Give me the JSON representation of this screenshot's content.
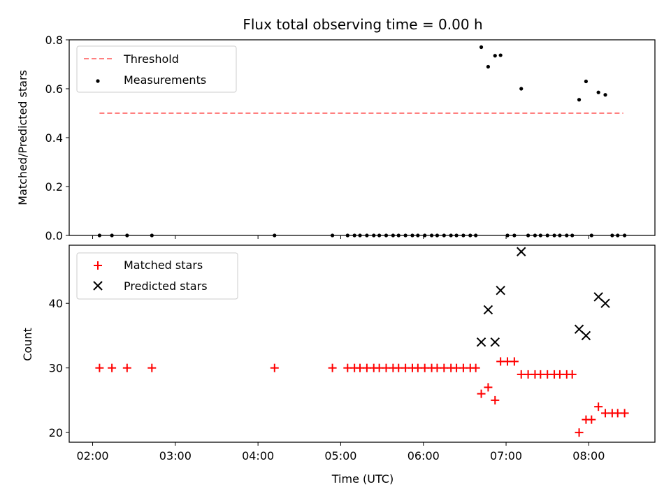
{
  "title": "Flux total observing time = 0.00 h",
  "chart_data": [
    {
      "type": "scatter",
      "ylabel": "Matched/Predicted stars",
      "ylim": [
        0,
        0.8
      ],
      "yticks": [
        "0.0",
        "0.2",
        "0.4",
        "0.6",
        "0.8"
      ],
      "threshold": {
        "name": "Threshold",
        "value": 0.5,
        "x_range": [
          "02:05",
          "08:25"
        ],
        "color": "#ff8080"
      },
      "series": [
        {
          "name": "Measurements",
          "color": "#000000",
          "marker": "dot",
          "points": [
            [
              "02:05",
              0
            ],
            [
              "02:14",
              0
            ],
            [
              "02:25",
              0
            ],
            [
              "02:43",
              0
            ],
            [
              "04:12",
              0
            ],
            [
              "04:54",
              0
            ],
            [
              "05:05",
              0
            ],
            [
              "05:10",
              0
            ],
            [
              "05:14",
              0
            ],
            [
              "05:19",
              0
            ],
            [
              "05:24",
              0
            ],
            [
              "05:28",
              0
            ],
            [
              "05:33",
              0
            ],
            [
              "05:38",
              0
            ],
            [
              "05:42",
              0
            ],
            [
              "05:47",
              0
            ],
            [
              "05:52",
              0
            ],
            [
              "05:56",
              0
            ],
            [
              "06:01",
              0
            ],
            [
              "06:06",
              0
            ],
            [
              "06:10",
              0
            ],
            [
              "06:15",
              0
            ],
            [
              "06:20",
              0
            ],
            [
              "06:24",
              0
            ],
            [
              "06:29",
              0
            ],
            [
              "06:34",
              0
            ],
            [
              "06:38",
              0
            ],
            [
              "06:42",
              0.77
            ],
            [
              "06:47",
              0.69
            ],
            [
              "06:52",
              0.735
            ],
            [
              "06:56",
              0.737
            ],
            [
              "07:01",
              0
            ],
            [
              "07:06",
              0
            ],
            [
              "07:11",
              0.6
            ],
            [
              "07:16",
              0
            ],
            [
              "07:21",
              0
            ],
            [
              "07:25",
              0
            ],
            [
              "07:30",
              0
            ],
            [
              "07:35",
              0
            ],
            [
              "07:39",
              0
            ],
            [
              "07:44",
              0
            ],
            [
              "07:48",
              0
            ],
            [
              "07:53",
              0.555
            ],
            [
              "07:58",
              0.63
            ],
            [
              "08:02",
              0
            ],
            [
              "08:07",
              0.585
            ],
            [
              "08:12",
              0.575
            ],
            [
              "08:17",
              0
            ],
            [
              "08:21",
              0
            ],
            [
              "08:26",
              0
            ]
          ]
        }
      ]
    },
    {
      "type": "scatter",
      "xlabel": "Time (UTC)",
      "ylabel": "Count",
      "ylim": [
        18.5,
        49
      ],
      "yticks": [
        "20",
        "30",
        "40"
      ],
      "xlim": [
        "01:43",
        "08:48"
      ],
      "xticks": [
        "02:00",
        "03:00",
        "04:00",
        "05:00",
        "06:00",
        "07:00",
        "08:00"
      ],
      "series": [
        {
          "name": "Matched stars",
          "color": "#ff0000",
          "marker": "plus",
          "points": [
            [
              "02:05",
              30
            ],
            [
              "02:14",
              30
            ],
            [
              "02:25",
              30
            ],
            [
              "02:43",
              30
            ],
            [
              "04:12",
              30
            ],
            [
              "04:54",
              30
            ],
            [
              "05:05",
              30
            ],
            [
              "05:10",
              30
            ],
            [
              "05:14",
              30
            ],
            [
              "05:19",
              30
            ],
            [
              "05:24",
              30
            ],
            [
              "05:28",
              30
            ],
            [
              "05:33",
              30
            ],
            [
              "05:38",
              30
            ],
            [
              "05:42",
              30
            ],
            [
              "05:47",
              30
            ],
            [
              "05:52",
              30
            ],
            [
              "05:56",
              30
            ],
            [
              "06:01",
              30
            ],
            [
              "06:06",
              30
            ],
            [
              "06:10",
              30
            ],
            [
              "06:15",
              30
            ],
            [
              "06:20",
              30
            ],
            [
              "06:24",
              30
            ],
            [
              "06:29",
              30
            ],
            [
              "06:34",
              30
            ],
            [
              "06:38",
              30
            ],
            [
              "06:42",
              26
            ],
            [
              "06:47",
              27
            ],
            [
              "06:52",
              25
            ],
            [
              "06:56",
              31
            ],
            [
              "07:01",
              31
            ],
            [
              "07:06",
              31
            ],
            [
              "07:11",
              29
            ],
            [
              "07:16",
              29
            ],
            [
              "07:21",
              29
            ],
            [
              "07:25",
              29
            ],
            [
              "07:30",
              29
            ],
            [
              "07:35",
              29
            ],
            [
              "07:39",
              29
            ],
            [
              "07:44",
              29
            ],
            [
              "07:48",
              29
            ],
            [
              "07:53",
              20
            ],
            [
              "07:58",
              22
            ],
            [
              "08:02",
              22
            ],
            [
              "08:07",
              24
            ],
            [
              "08:12",
              23
            ],
            [
              "08:17",
              23
            ],
            [
              "08:21",
              23
            ],
            [
              "08:26",
              23
            ]
          ]
        },
        {
          "name": "Predicted stars",
          "color": "#000000",
          "marker": "x",
          "points": [
            [
              "06:42",
              34
            ],
            [
              "06:47",
              39
            ],
            [
              "06:52",
              34
            ],
            [
              "06:56",
              42
            ],
            [
              "07:11",
              48
            ],
            [
              "07:53",
              36
            ],
            [
              "07:58",
              35
            ],
            [
              "08:07",
              41
            ],
            [
              "08:12",
              40
            ]
          ]
        }
      ]
    }
  ]
}
